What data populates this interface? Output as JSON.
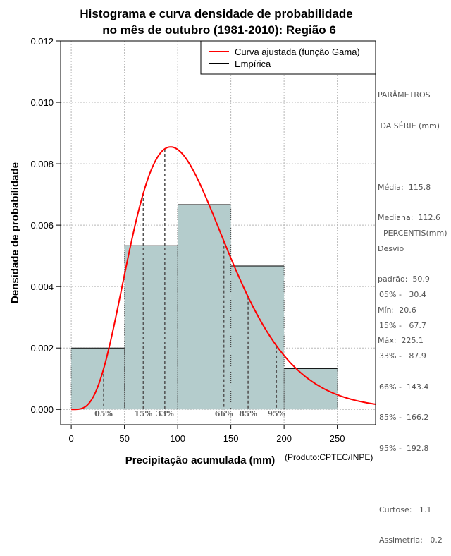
{
  "chart_data": {
    "type": "histogram",
    "title_line1": "Histograma e curva densidade de probabilidade",
    "title_line2": "no mês de outubro (1981-2010): Região 6",
    "xlabel": "Precipitação acumulada (mm)",
    "ylabel": "Densidade de probabilidade",
    "credit": "(Produto:CPTEC/INPE)",
    "xlim": [
      -10,
      286
    ],
    "ylim": [
      -0.0005,
      0.012
    ],
    "x_ticks": [
      0,
      50,
      100,
      150,
      200,
      250
    ],
    "y_ticks": [
      0.0,
      0.002,
      0.004,
      0.006,
      0.008,
      0.01,
      0.012
    ],
    "y_tick_labels": [
      "0.000",
      "0.002",
      "0.004",
      "0.006",
      "0.008",
      "0.010",
      "0.012"
    ],
    "grid": true,
    "bins": [
      {
        "from": 0,
        "to": 50,
        "density": 0.002
      },
      {
        "from": 50,
        "to": 100,
        "density": 0.00533
      },
      {
        "from": 100,
        "to": 150,
        "density": 0.00667
      },
      {
        "from": 150,
        "to": 200,
        "density": 0.00467
      },
      {
        "from": 200,
        "to": 250,
        "density": 0.00133
      }
    ],
    "gamma_fit": {
      "shape": 5.17,
      "scale": 22.4
    },
    "bar_color": "#b4cccc",
    "curve_color": "#ff0000",
    "legend": {
      "position": "top-right",
      "entries": [
        {
          "label": "Curva ajustada (função Gama)",
          "color": "#ff0000"
        },
        {
          "label": "Empírica",
          "color": "#000000"
        }
      ]
    },
    "percentile_lines": [
      {
        "label": "05%",
        "value": 30.4
      },
      {
        "label": "15%",
        "value": 67.7
      },
      {
        "label": "33%",
        "value": 87.9
      },
      {
        "label": "66%",
        "value": 143.4
      },
      {
        "label": "85%",
        "value": 166.2
      },
      {
        "label": "95%",
        "value": 192.8
      }
    ]
  },
  "side_panel": {
    "params_title_1": "PARÂMETROS",
    "params_title_2": " DA SÉRIE (mm)",
    "media": "Média:  115.8",
    "mediana": "Mediana:  112.6",
    "desvio_1": "Desvio",
    "desvio_2": "padrão:  50.9",
    "min": "Mín:  20.6",
    "max": "Máx:  225.1",
    "percentis_title": "PERCENTIS(mm)",
    "p05": "05% -   30.4",
    "p15": "15% -   67.7",
    "p33": "33% -   87.9",
    "p66": "66% -  143.4",
    "p85": "85% -  166.2",
    "p95": "95% -  192.8",
    "curtose": "Curtose:   1.1",
    "assimetria": "Assimetria:   0.2"
  }
}
